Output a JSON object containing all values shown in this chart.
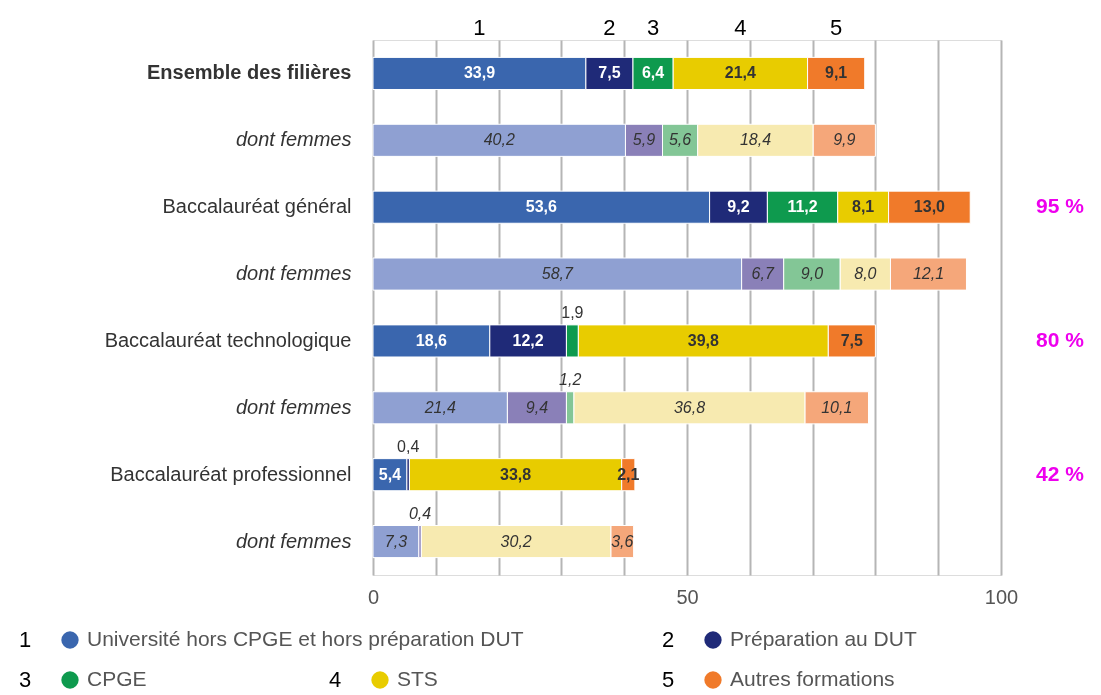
{
  "chart_data": {
    "type": "bar",
    "orientation": "horizontal",
    "stacked": true,
    "categories": [
      "Ensemble des filières",
      "dont femmes",
      "Baccalauréat général",
      "dont femmes",
      "Baccalauréat technologique",
      "dont femmes",
      "Baccalauréat professionnel",
      "dont femmes"
    ],
    "series": [
      {
        "name": "Université hors CPGE et hors préparation DUT",
        "color": "#3a66ae",
        "colors": [
          "#3a66ae",
          "#8fa0d2",
          "#3a66ae",
          "#8fa0d2",
          "#3a66ae",
          "#8fa0d2",
          "#3a66ae",
          "#8fa0d2"
        ],
        "values": [
          33.9,
          40.2,
          53.6,
          58.7,
          18.6,
          21.4,
          5.4,
          7.3
        ],
        "value_labels": [
          "33,9",
          "40,2",
          "53,6",
          "58,7",
          "18,6",
          "21,4",
          "5,4",
          "7,3"
        ]
      },
      {
        "name": "Préparation au DUT",
        "color": "#1f2a78",
        "colors": [
          "#1f2a78",
          "#8a80b8",
          "#1f2a78",
          "#8a80b8",
          "#1f2a78",
          "#8a80b8",
          "#1f2a78",
          "#8a80b8"
        ],
        "values": [
          7.5,
          5.9,
          9.2,
          6.7,
          12.2,
          9.4,
          0.4,
          0.4
        ],
        "value_labels": [
          "7,5",
          "5,9",
          "9,2",
          "6,7",
          "12,2",
          "9,4",
          "0,4",
          "0,4"
        ]
      },
      {
        "name": "CPGE",
        "color": "#0e9a4e",
        "colors": [
          "#0e9a4e",
          "#83c696",
          "#0e9a4e",
          "#83c696",
          "#0e9a4e",
          "#83c696",
          "#0e9a4e",
          "#83c696"
        ],
        "values": [
          6.4,
          5.6,
          11.2,
          9.0,
          1.9,
          1.2,
          null,
          null
        ],
        "value_labels": [
          "6,4",
          "5,6",
          "11,2",
          "9,0",
          "1,9",
          "1,2",
          null,
          null
        ]
      },
      {
        "name": "STS",
        "color": "#e8cc00",
        "colors": [
          "#e8cc00",
          "#f7eab0",
          "#e8cc00",
          "#f7eab0",
          "#e8cc00",
          "#f7eab0",
          "#e8cc00",
          "#f7eab0"
        ],
        "values": [
          21.4,
          18.4,
          8.1,
          8.0,
          39.8,
          36.8,
          33.8,
          30.2
        ],
        "value_labels": [
          "21,4",
          "18,4",
          "8,1",
          "8,0",
          "39,8",
          "36,8",
          "33,8",
          "30,2"
        ]
      },
      {
        "name": "Autres formations",
        "color": "#f07a2a",
        "colors": [
          "#f07a2a",
          "#f5a77a",
          "#f07a2a",
          "#f5a77a",
          "#f07a2a",
          "#f5a77a",
          "#f07a2a",
          "#f5a77a"
        ],
        "values": [
          9.1,
          9.9,
          13.0,
          12.1,
          7.5,
          10.1,
          2.1,
          3.6
        ],
        "value_labels": [
          "9,1",
          "9,9",
          "13,0",
          "12,1",
          "7,5",
          "10,1",
          "2,1",
          "3,6"
        ]
      }
    ],
    "xlim": [
      0,
      100
    ],
    "xticks": [
      0,
      {
        "value": 10,
        "label": null
      },
      {
        "value": 20,
        "label": null
      },
      {
        "value": 30,
        "label": null
      },
      {
        "value": 40,
        "label": null
      },
      50,
      {
        "value": 60,
        "label": null
      },
      {
        "value": 70,
        "label": null
      },
      {
        "value": 80,
        "label": null
      },
      {
        "value": 90,
        "label": null
      },
      100
    ],
    "grid": "x",
    "legend": "bottom",
    "annotations": [
      "1",
      "2",
      "3",
      "4",
      "5",
      "95 %",
      "80 %",
      "42 %"
    ]
  }
}
